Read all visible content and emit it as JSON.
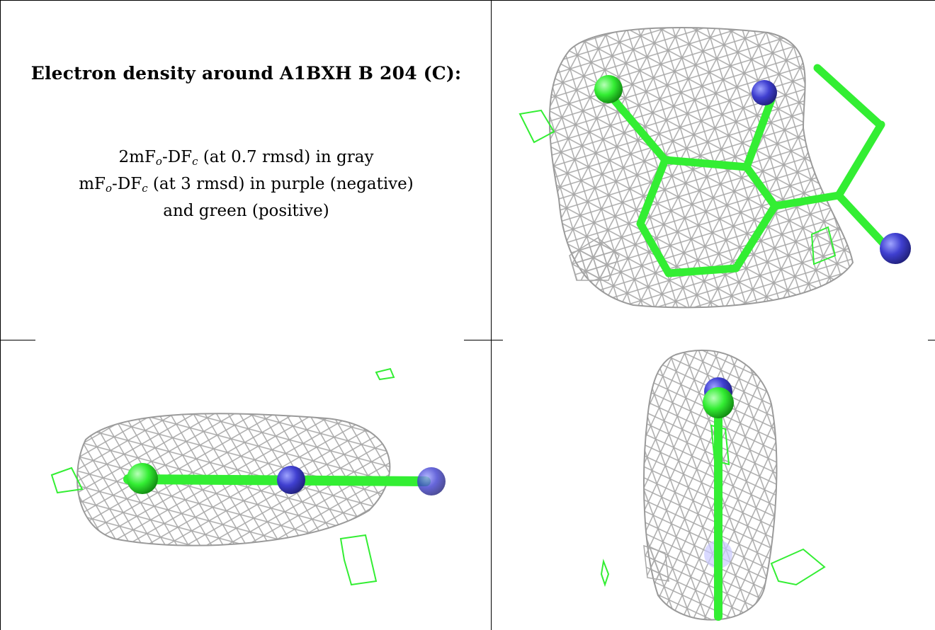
{
  "caption": {
    "title": "Electron density around A1BXH B 204 (C):",
    "line1_prefix": "2mF",
    "line1_sub1": "o",
    "line1_mid": "-DF",
    "line1_sub2": "c",
    "line1_suffix": " (at 0.7 rmsd) in gray",
    "line2_prefix": "mF",
    "line2_sub1": "o",
    "line2_mid": "-DF",
    "line2_sub2": "c",
    "line2_suffix": " (at 3 rmsd) in purple (negative)",
    "line3": "and green (positive)"
  },
  "colors": {
    "mesh_gray": "#a9a9a9",
    "mesh_green": "#33ee33",
    "carbon_green": "#33ee33",
    "nitrogen_blue": "#3f3fd0",
    "border": "#000000"
  },
  "panels": [
    {
      "view": "top-right",
      "icon": "molecule-mesh-icon"
    },
    {
      "view": "bottom-left",
      "icon": "molecule-mesh-side-icon"
    },
    {
      "view": "bottom-right",
      "icon": "molecule-mesh-end-icon"
    }
  ]
}
